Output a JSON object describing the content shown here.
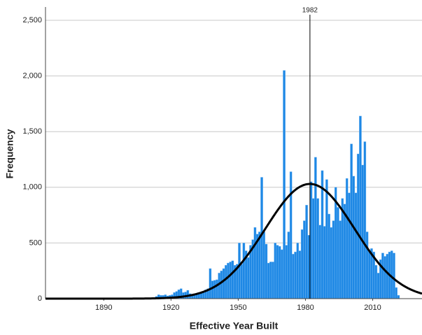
{
  "chart_data": {
    "type": "histogram",
    "x_label": "Effective Year Built",
    "y_label": "Frequency",
    "bins": [
      1900,
      1901,
      1902,
      1903,
      1904,
      1905,
      1906,
      1907,
      1908,
      1909,
      1910,
      1911,
      1912,
      1913,
      1914,
      1915,
      1916,
      1917,
      1918,
      1919,
      1920,
      1921,
      1922,
      1923,
      1924,
      1925,
      1926,
      1927,
      1928,
      1929,
      1930,
      1931,
      1932,
      1933,
      1934,
      1935,
      1936,
      1937,
      1938,
      1939,
      1940,
      1941,
      1942,
      1943,
      1944,
      1945,
      1946,
      1947,
      1948,
      1949,
      1950,
      1951,
      1952,
      1953,
      1954,
      1955,
      1956,
      1957,
      1958,
      1959,
      1960,
      1961,
      1962,
      1963,
      1964,
      1965,
      1966,
      1967,
      1968,
      1969,
      1970,
      1971,
      1972,
      1973,
      1974,
      1975,
      1976,
      1977,
      1978,
      1979,
      1980,
      1981,
      1982,
      1983,
      1984,
      1985,
      1986,
      1987,
      1988,
      1989,
      1990,
      1991,
      1992,
      1993,
      1994,
      1995,
      1996,
      1997,
      1998,
      1999,
      2000,
      2001,
      2002,
      2003,
      2004,
      2005,
      2006,
      2007,
      2008,
      2009,
      2010,
      2011,
      2012,
      2013,
      2014,
      2015,
      2016,
      2017,
      2018,
      2019,
      2020,
      2021,
      2022
    ],
    "values": [
      5,
      8,
      3,
      0,
      0,
      5,
      8,
      5,
      3,
      5,
      8,
      5,
      10,
      20,
      35,
      30,
      30,
      35,
      25,
      30,
      35,
      55,
      65,
      80,
      90,
      55,
      60,
      75,
      45,
      40,
      40,
      45,
      40,
      50,
      60,
      80,
      90,
      270,
      160,
      165,
      170,
      230,
      250,
      270,
      300,
      320,
      330,
      340,
      300,
      310,
      500,
      310,
      500,
      430,
      370,
      480,
      530,
      640,
      580,
      600,
      1090,
      600,
      490,
      320,
      330,
      330,
      500,
      480,
      470,
      440,
      2050,
      480,
      600,
      1140,
      400,
      420,
      500,
      430,
      620,
      700,
      840,
      570,
      1050,
      900,
      1270,
      900,
      660,
      1150,
      650,
      1070,
      760,
      640,
      700,
      1000,
      820,
      700,
      900,
      850,
      1080,
      950,
      1390,
      1100,
      950,
      1300,
      1640,
      1200,
      1410,
      600,
      430,
      450,
      420,
      300,
      230,
      350,
      410,
      380,
      400,
      420,
      430,
      410,
      100,
      30
    ],
    "color": "#1e88e5",
    "normal_curve": {
      "mean": 1982,
      "std_dev": 20,
      "peak": 1030,
      "color": "#000000"
    },
    "xlim": [
      1864,
      2032
    ],
    "xticks": [
      1890,
      1920,
      1950,
      1980,
      2010
    ],
    "ylim": [
      0,
      2500
    ],
    "yticks": [
      0,
      500,
      {
        "value": 1000,
        "label": "1,000"
      },
      {
        "value": 1500,
        "label": "1,500"
      },
      {
        "value": 2000,
        "label": "2,000"
      },
      {
        "value": 2500,
        "label": "2,500"
      }
    ],
    "grid": true
  }
}
